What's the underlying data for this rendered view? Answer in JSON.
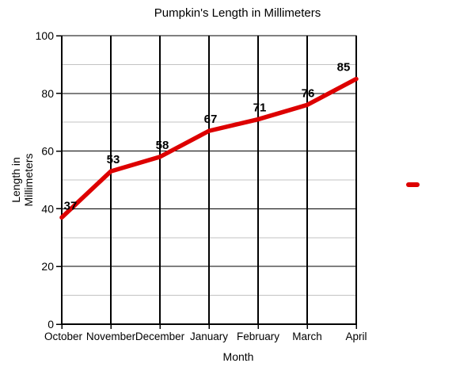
{
  "chart_data": {
    "type": "line",
    "title": "Pumpkin's Length in Millimeters",
    "xlabel": "Month",
    "ylabel": "Length in Millimeters",
    "ylabel_lines": [
      "Length in",
      "Millimeters"
    ],
    "categories": [
      "October",
      "November",
      "December",
      "January",
      "February",
      "March",
      "April"
    ],
    "series": [
      {
        "color": "#dd0000",
        "values": [
          37,
          53,
          58,
          67,
          71,
          76,
          85
        ]
      }
    ],
    "data_labels": [
      "37",
      "53",
      "58",
      "67",
      "71",
      "76",
      "85"
    ],
    "ylim": [
      0,
      100
    ],
    "y_major_ticks": [
      0,
      20,
      40,
      60,
      80,
      100
    ],
    "y_minor_ticks": [
      10,
      30,
      50,
      70,
      90
    ],
    "grid": {
      "on": true,
      "major_color": "#000000",
      "minor_color": "#c3c3c3"
    },
    "axis_color": "#000000",
    "text_color": "#000000",
    "legend": {
      "position": "right",
      "marker_color": "#dd0000",
      "label": ""
    }
  }
}
